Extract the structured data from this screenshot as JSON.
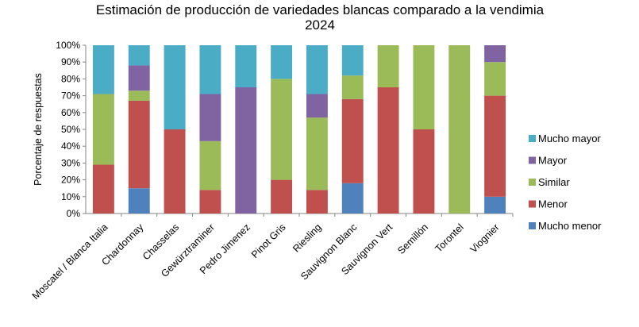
{
  "chart_data": {
    "type": "bar",
    "stacked": true,
    "title_lines": [
      "Estimación de producción de variedades blancas comparado a la vendimia",
      "2024"
    ],
    "ylabel": "Porcentaje de respuestas",
    "xlabel": "",
    "ylim": [
      0,
      100
    ],
    "yticks": [
      "0%",
      "10%",
      "20%",
      "30%",
      "40%",
      "50%",
      "60%",
      "70%",
      "80%",
      "90%",
      "100%"
    ],
    "grid": false,
    "legend_position": "right",
    "categories": [
      "Moscatel / Blanca Italia",
      "Chardonnay",
      "Chasselas",
      "Gewürztraminer",
      "Pedro Jimenez",
      "Pinot Gris",
      "Riesling",
      "Sauvignon Blanc",
      "Sauvignon Vert",
      "Semillón",
      "Torontel",
      "Viognier"
    ],
    "series": [
      {
        "name": "Mucho menor",
        "color": "#4f81bd",
        "values": [
          0,
          15,
          0,
          0,
          0,
          0,
          0,
          18,
          0,
          0,
          0,
          10
        ]
      },
      {
        "name": "Menor",
        "color": "#c0504d",
        "values": [
          29,
          52,
          50,
          14,
          0,
          20,
          14,
          50,
          75,
          50,
          0,
          60
        ]
      },
      {
        "name": "Similar",
        "color": "#9bbb59",
        "values": [
          42,
          6,
          0,
          29,
          0,
          60,
          43,
          14,
          25,
          50,
          100,
          20
        ]
      },
      {
        "name": "Mayor",
        "color": "#8064a2",
        "values": [
          0,
          15,
          0,
          28,
          75,
          0,
          14,
          0,
          0,
          0,
          0,
          10
        ]
      },
      {
        "name": "Mucho mayor",
        "color": "#4bacc6",
        "values": [
          29,
          12,
          50,
          29,
          25,
          20,
          29,
          18,
          0,
          0,
          0,
          0
        ]
      }
    ],
    "legend_order": [
      "Mucho mayor",
      "Mayor",
      "Similar",
      "Menor",
      "Mucho menor"
    ]
  }
}
